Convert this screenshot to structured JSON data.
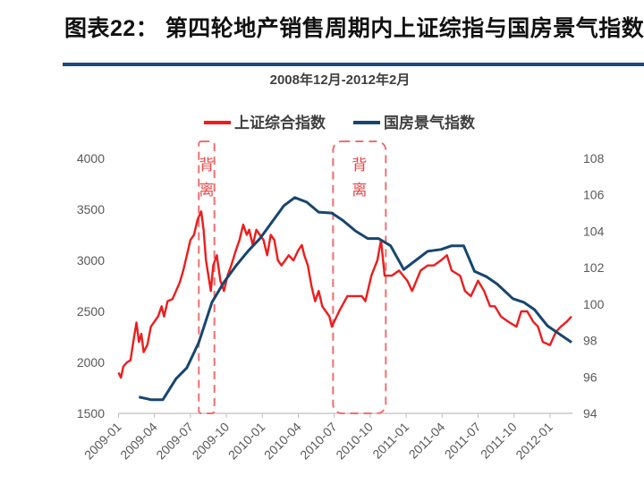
{
  "header": {
    "title": "图表22：  第四轮地产销售周期内上证综指与国房景气指数"
  },
  "chart_data": {
    "type": "line",
    "title": "2008年12月-2012年2月",
    "x_unit": "months since 2009-01",
    "xlim": [
      0,
      37.9
    ],
    "x_ticks": [
      {
        "m": 0,
        "label": "2009-01"
      },
      {
        "m": 3,
        "label": "2009-04"
      },
      {
        "m": 6,
        "label": "2009-07"
      },
      {
        "m": 9,
        "label": "2009-10"
      },
      {
        "m": 12,
        "label": "2010-01"
      },
      {
        "m": 15,
        "label": "2010-04"
      },
      {
        "m": 18,
        "label": "2010-07"
      },
      {
        "m": 21,
        "label": "2010-10"
      },
      {
        "m": 24,
        "label": "2011-01"
      },
      {
        "m": 27,
        "label": "2011-04"
      },
      {
        "m": 30,
        "label": "2011-07"
      },
      {
        "m": 33,
        "label": "2011-10"
      },
      {
        "m": 36,
        "label": "2012-01"
      }
    ],
    "y_left": {
      "ylim": [
        1500,
        4000
      ],
      "ticks": [
        "1500",
        "2000",
        "2500",
        "3000",
        "3500",
        "4000"
      ]
    },
    "y_right": {
      "ylim": [
        94,
        108
      ],
      "ticks": [
        "94",
        "96",
        "98",
        "100",
        "102",
        "104",
        "106",
        "108"
      ]
    },
    "legend": "top-center",
    "grid": false,
    "series": [
      {
        "name": "上证综合指数",
        "axis": "left",
        "color": "#ee1c1c",
        "points": [
          [
            0,
            1900
          ],
          [
            0.2,
            1850
          ],
          [
            0.4,
            1960
          ],
          [
            0.7,
            2000
          ],
          [
            1.0,
            2020
          ],
          [
            1.3,
            2250
          ],
          [
            1.5,
            2390
          ],
          [
            1.7,
            2200
          ],
          [
            1.9,
            2280
          ],
          [
            2.1,
            2100
          ],
          [
            2.4,
            2170
          ],
          [
            2.7,
            2350
          ],
          [
            3.0,
            2400
          ],
          [
            3.3,
            2450
          ],
          [
            3.6,
            2550
          ],
          [
            3.8,
            2450
          ],
          [
            4.1,
            2600
          ],
          [
            4.5,
            2620
          ],
          [
            4.8,
            2700
          ],
          [
            5.1,
            2780
          ],
          [
            5.4,
            2900
          ],
          [
            5.7,
            3050
          ],
          [
            6.0,
            3200
          ],
          [
            6.3,
            3250
          ],
          [
            6.6,
            3400
          ],
          [
            6.9,
            3480
          ],
          [
            7.1,
            3300
          ],
          [
            7.3,
            3000
          ],
          [
            7.5,
            2850
          ],
          [
            7.7,
            2700
          ],
          [
            7.9,
            2950
          ],
          [
            8.2,
            3050
          ],
          [
            8.5,
            2800
          ],
          [
            8.8,
            2700
          ],
          [
            9.1,
            2850
          ],
          [
            9.4,
            2950
          ],
          [
            9.8,
            3100
          ],
          [
            10.1,
            3200
          ],
          [
            10.4,
            3350
          ],
          [
            10.7,
            3250
          ],
          [
            10.9,
            3300
          ],
          [
            11.2,
            3150
          ],
          [
            11.5,
            3300
          ],
          [
            11.8,
            3250
          ],
          [
            12.1,
            3200
          ],
          [
            12.4,
            3050
          ],
          [
            12.7,
            3250
          ],
          [
            13.0,
            3200
          ],
          [
            13.3,
            3000
          ],
          [
            13.6,
            2950
          ],
          [
            13.9,
            3000
          ],
          [
            14.2,
            3050
          ],
          [
            14.6,
            3000
          ],
          [
            15.0,
            3100
          ],
          [
            15.3,
            3150
          ],
          [
            15.5,
            3050
          ],
          [
            15.8,
            2950
          ],
          [
            16.1,
            2750
          ],
          [
            16.4,
            2600
          ],
          [
            16.7,
            2700
          ],
          [
            17.0,
            2550
          ],
          [
            17.3,
            2500
          ],
          [
            17.6,
            2450
          ],
          [
            17.8,
            2350
          ],
          [
            18.4,
            2500
          ],
          [
            19.1,
            2650
          ],
          [
            19.7,
            2650
          ],
          [
            20.3,
            2650
          ],
          [
            20.6,
            2600
          ],
          [
            21.1,
            2850
          ],
          [
            21.6,
            3000
          ],
          [
            21.9,
            3200
          ],
          [
            22.2,
            2850
          ],
          [
            22.8,
            2850
          ],
          [
            23.4,
            2900
          ],
          [
            24.1,
            2800
          ],
          [
            24.5,
            2700
          ],
          [
            25.2,
            2900
          ],
          [
            25.8,
            2950
          ],
          [
            26.3,
            2950
          ],
          [
            26.9,
            3000
          ],
          [
            27.4,
            3050
          ],
          [
            27.8,
            2900
          ],
          [
            28.5,
            2850
          ],
          [
            28.9,
            2700
          ],
          [
            29.4,
            2650
          ],
          [
            30.0,
            2800
          ],
          [
            30.5,
            2700
          ],
          [
            31.0,
            2550
          ],
          [
            31.4,
            2550
          ],
          [
            31.9,
            2450
          ],
          [
            32.5,
            2400
          ],
          [
            33.2,
            2350
          ],
          [
            33.6,
            2500
          ],
          [
            34.1,
            2500
          ],
          [
            34.6,
            2400
          ],
          [
            35.0,
            2350
          ],
          [
            35.4,
            2200
          ],
          [
            36.0,
            2170
          ],
          [
            36.5,
            2300
          ],
          [
            36.9,
            2350
          ],
          [
            37.4,
            2400
          ],
          [
            37.8,
            2450
          ]
        ]
      },
      {
        "name": "国房景气指数",
        "axis": "right",
        "color": "#17466e",
        "points": [
          [
            1.7,
            94.9
          ],
          [
            2.7,
            94.75
          ],
          [
            3.7,
            94.75
          ],
          [
            4.8,
            95.9
          ],
          [
            5.7,
            96.5
          ],
          [
            6.7,
            97.9
          ],
          [
            7.8,
            100.1
          ],
          [
            8.8,
            101.2
          ],
          [
            9.8,
            102.1
          ],
          [
            10.8,
            102.9
          ],
          [
            11.8,
            103.6
          ],
          [
            12.8,
            104.5
          ],
          [
            13.8,
            105.4
          ],
          [
            14.7,
            105.85
          ],
          [
            15.7,
            105.6
          ],
          [
            16.7,
            105.05
          ],
          [
            17.8,
            105.0
          ],
          [
            18.7,
            104.6
          ],
          [
            19.8,
            104.0
          ],
          [
            20.8,
            103.6
          ],
          [
            21.7,
            103.6
          ],
          [
            22.7,
            103.2
          ],
          [
            23.8,
            101.9
          ],
          [
            24.8,
            102.4
          ],
          [
            25.8,
            102.9
          ],
          [
            26.9,
            103.0
          ],
          [
            27.8,
            103.2
          ],
          [
            28.8,
            103.2
          ],
          [
            29.7,
            101.8
          ],
          [
            30.7,
            101.5
          ],
          [
            31.6,
            101.1
          ],
          [
            32.9,
            100.3
          ],
          [
            33.8,
            100.1
          ],
          [
            34.7,
            99.7
          ],
          [
            35.8,
            98.8
          ],
          [
            37.8,
            97.9
          ]
        ]
      }
    ],
    "annotations": [
      {
        "text": "背离",
        "x_range": [
          6.7,
          8.0
        ]
      },
      {
        "text": "背离",
        "x_range": [
          17.9,
          22.3
        ]
      }
    ]
  }
}
